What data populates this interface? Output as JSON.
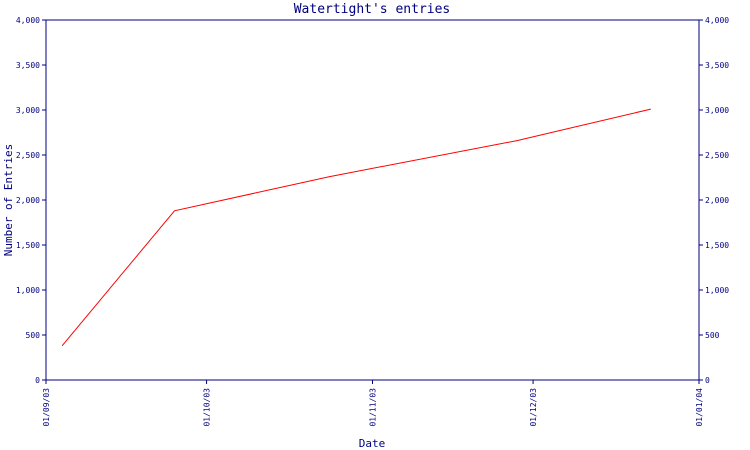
{
  "chart_data": {
    "type": "line",
    "title": "Watertight's entries",
    "xlabel": "Date",
    "ylabel": "Number of Entries",
    "x_ticks": [
      "2003-09-01",
      "2003-10-01",
      "2003-11-01",
      "2003-12-01",
      "2004-01-01"
    ],
    "x_tick_labels": [
      "01/09/03",
      "01/10/03",
      "01/11/03",
      "01/12/03",
      "01/01/04"
    ],
    "xlim": [
      "2003-09-01",
      "2004-01-01"
    ],
    "ylim": [
      0,
      4000
    ],
    "y_ticks": [
      0,
      500,
      1000,
      1500,
      2000,
      2500,
      3000,
      3500,
      4000
    ],
    "y_tick_labels": [
      "0",
      "500",
      "1,000",
      "1,500",
      "2,000",
      "2,500",
      "3,000",
      "3,500",
      "4,000"
    ],
    "series": [
      {
        "color": "#ff0000",
        "points": [
          {
            "x": "2003-09-04",
            "y": 380
          },
          {
            "x": "2003-09-25",
            "y": 1880
          },
          {
            "x": "2003-10-24",
            "y": 2260
          },
          {
            "x": "2003-11-28",
            "y": 2660
          },
          {
            "x": "2003-12-23",
            "y": 3010
          }
        ]
      }
    ],
    "grid": false,
    "axis_color": "#000080"
  }
}
